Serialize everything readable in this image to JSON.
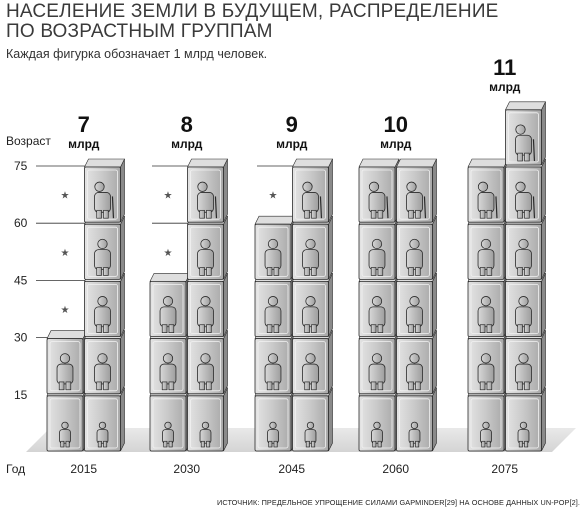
{
  "title_line1": "НАСЕЛЕНИЕ ЗЕМЛИ В БУДУЩЕМ, РАСПРЕДЕЛЕНИЕ",
  "title_line2": "ПО ВОЗРАСТНЫМ ГРУППАМ",
  "subtitle": "Каждая фигурка обозначает 1 млрд человек.",
  "source": "ИСТОЧНИК: ПРЕДЕЛЬНОЕ УПРОЩЕНИЕ СИЛАМИ GAPMINDER[29] НА ОСНОВЕ ДАННЫХ UN-POP[2].",
  "chart_data": {
    "type": "stacked-pictogram",
    "unit": "млрд",
    "ylabel": "Возраст",
    "xlabel": "Год",
    "y_ticks": [
      15,
      30,
      45,
      60,
      75
    ],
    "age_groups": [
      "0-15",
      "15-30",
      "30-45",
      "45-60",
      "60-75",
      "75+"
    ],
    "years": [
      {
        "year": "2015",
        "total": 7,
        "columns": [
          2,
          5
        ]
      },
      {
        "year": "2030",
        "total": 8,
        "columns": [
          3,
          5
        ]
      },
      {
        "year": "2045",
        "total": 9,
        "columns": [
          4,
          5
        ]
      },
      {
        "year": "2060",
        "total": 10,
        "columns": [
          5,
          5
        ]
      },
      {
        "year": "2075",
        "total": 11,
        "columns": [
          5,
          6
        ]
      }
    ],
    "stars": {
      "2015": [
        2,
        3,
        4
      ],
      "2030": [
        3,
        4
      ],
      "2045": [
        4
      ]
    },
    "colors": {
      "box": "#c8c8c8",
      "figure": "#bdbdbd",
      "floor": "#e6e6e6",
      "outline": "#2a2a2a"
    }
  }
}
